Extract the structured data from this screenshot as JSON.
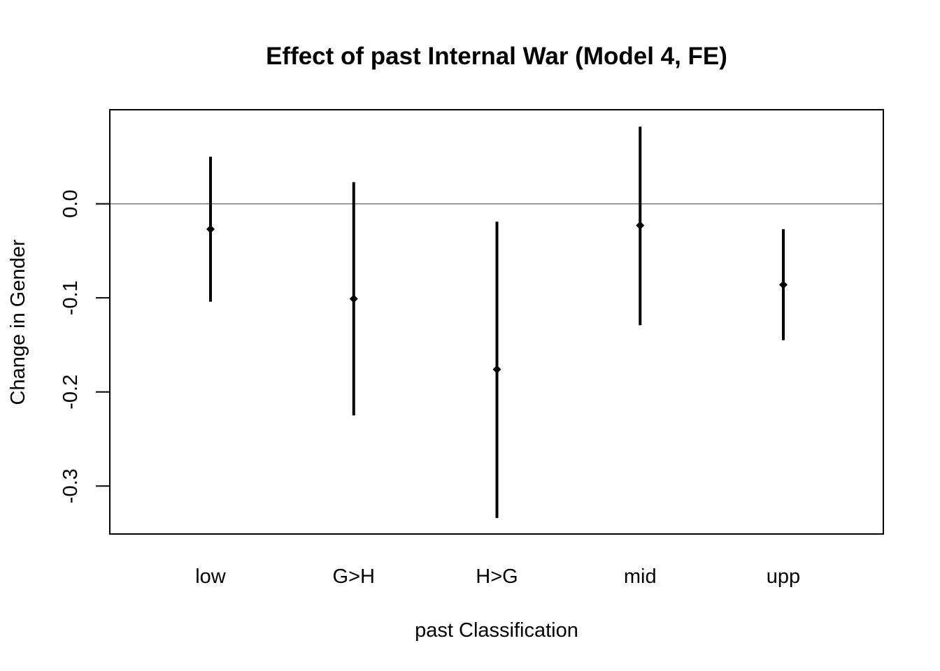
{
  "chart_data": {
    "type": "errorbar",
    "title": "Effect of past Internal War (Model 4, FE)",
    "xlabel": "past Classification",
    "ylabel": "Change in Gender",
    "categories": [
      "low",
      "G>H",
      "H>G",
      "mid",
      "upp"
    ],
    "estimates": [
      -0.027,
      -0.101,
      -0.176,
      -0.023,
      -0.086
    ],
    "lower": [
      -0.104,
      -0.225,
      -0.334,
      -0.129,
      -0.145
    ],
    "upper": [
      0.05,
      0.023,
      -0.019,
      0.082,
      -0.027
    ],
    "yticks": [
      0.0,
      -0.1,
      -0.2,
      -0.3
    ],
    "ytick_labels": [
      "0.0",
      "-0.1",
      "-0.2",
      "-0.3"
    ],
    "ylim": [
      -0.351,
      0.1
    ],
    "reference_line": 0.0,
    "grid": false,
    "legend": "none",
    "colors": {
      "marks": "#000000",
      "reference_line": "#666666",
      "frame": "#000000"
    }
  }
}
